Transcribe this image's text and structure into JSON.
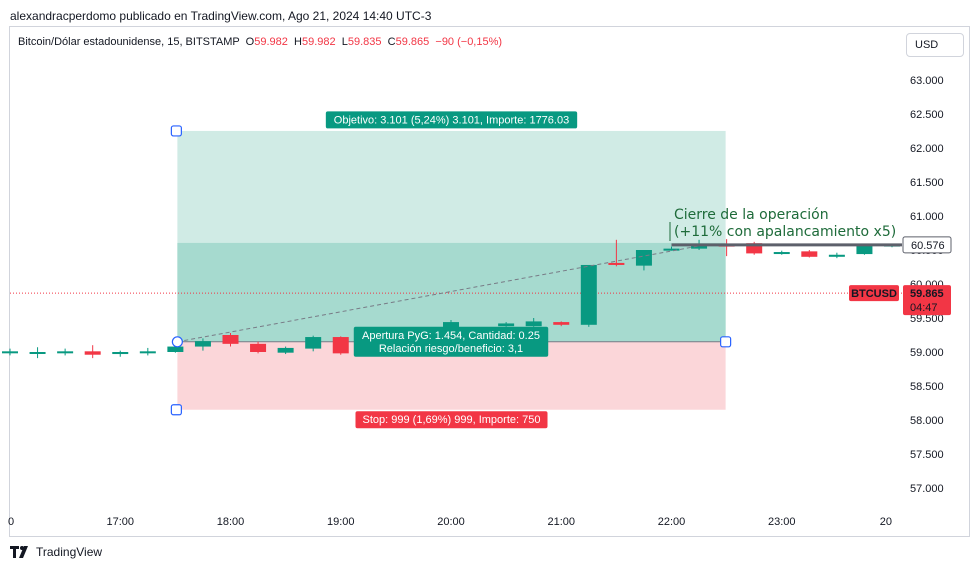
{
  "header": {
    "publisher_line": "alexandracperdomo publicado en TradingView.com, Ago 21, 2024 14:40 UTC-3"
  },
  "legend": {
    "symbol": "Bitcoin/Dólar estadounidense, 15, BITSTAMP",
    "o_label": "O",
    "o_value": "59.982",
    "h_label": "H",
    "h_value": "59.982",
    "l_label": "L",
    "l_value": "59.835",
    "c_label": "C",
    "c_value": "59.865",
    "change": "−90 (−0,15%)"
  },
  "currency_button": "USD",
  "footer": {
    "brand": "TradingView"
  },
  "colors": {
    "up": "#089981",
    "down": "#f23645",
    "target_zone": "#d0ebe5",
    "stop_zone": "#fbd6d9",
    "pnl_zone": "#a6dacf",
    "annotation_text": "#1e6b3a"
  },
  "chart_data": {
    "type": "candlestick",
    "interval_minutes": 15,
    "ylim": [
      56700,
      63300
    ],
    "y_ticks": [
      "63.000",
      "62.500",
      "62.000",
      "61.500",
      "61.000",
      "60.500",
      "60.000",
      "59.500",
      "59.000",
      "58.500",
      "58.000",
      "57.500",
      "57.000"
    ],
    "y_tick_values": [
      63000,
      62500,
      62000,
      61500,
      61000,
      60500,
      60000,
      59500,
      59000,
      58500,
      58000,
      57500,
      57000
    ],
    "x_ticks": [
      "0",
      "17:00",
      "18:00",
      "19:00",
      "20:00",
      "21:00",
      "22:00",
      "23:00",
      "20"
    ],
    "x_tick_hours": [
      16.0,
      17.0,
      18.0,
      19.0,
      20.0,
      21.0,
      22.0,
      23.0,
      24.0
    ],
    "xlim_hours": [
      16.0,
      24.0
    ],
    "candles": [
      {
        "t": 16.0,
        "o": 59000,
        "h": 59050,
        "l": 58950,
        "c": 59010
      },
      {
        "t": 16.25,
        "o": 58990,
        "h": 59070,
        "l": 58910,
        "c": 59000
      },
      {
        "t": 16.5,
        "o": 59000,
        "h": 59050,
        "l": 58950,
        "c": 59010
      },
      {
        "t": 16.75,
        "o": 59010,
        "h": 59100,
        "l": 58910,
        "c": 58960
      },
      {
        "t": 17.0,
        "o": 58970,
        "h": 59020,
        "l": 58930,
        "c": 59000
      },
      {
        "t": 17.25,
        "o": 59000,
        "h": 59060,
        "l": 58950,
        "c": 59010
      },
      {
        "t": 17.5,
        "o": 59000,
        "h": 59150,
        "l": 58990,
        "c": 59080
      },
      {
        "t": 17.75,
        "o": 59080,
        "h": 59200,
        "l": 59020,
        "c": 59160
      },
      {
        "t": 18.0,
        "o": 59250,
        "h": 59280,
        "l": 59080,
        "c": 59120
      },
      {
        "t": 18.25,
        "o": 59120,
        "h": 59150,
        "l": 58980,
        "c": 59000
      },
      {
        "t": 18.5,
        "o": 58990,
        "h": 59080,
        "l": 58970,
        "c": 59060
      },
      {
        "t": 18.75,
        "o": 59050,
        "h": 59240,
        "l": 59010,
        "c": 59220
      },
      {
        "t": 19.0,
        "o": 59220,
        "h": 59230,
        "l": 58960,
        "c": 58980
      },
      {
        "t": 19.25,
        "o": 58990,
        "h": 59150,
        "l": 58980,
        "c": 59140
      },
      {
        "t": 19.5,
        "o": 59150,
        "h": 59160,
        "l": 59110,
        "c": 59130
      },
      {
        "t": 20.0,
        "o": 59280,
        "h": 59470,
        "l": 59270,
        "c": 59440
      },
      {
        "t": 20.5,
        "o": 59380,
        "h": 59440,
        "l": 59370,
        "c": 59420
      },
      {
        "t": 20.75,
        "o": 59380,
        "h": 59500,
        "l": 59370,
        "c": 59450
      },
      {
        "t": 21.0,
        "o": 59440,
        "h": 59450,
        "l": 59380,
        "c": 59400
      },
      {
        "t": 21.25,
        "o": 59400,
        "h": 60260,
        "l": 59370,
        "c": 60280
      },
      {
        "t": 21.5,
        "o": 60310,
        "h": 60650,
        "l": 60260,
        "c": 60280
      },
      {
        "t": 21.75,
        "o": 60270,
        "h": 60500,
        "l": 60200,
        "c": 60500
      },
      {
        "t": 22.0,
        "o": 60500,
        "h": 60550,
        "l": 60490,
        "c": 60520
      },
      {
        "t": 22.25,
        "o": 60520,
        "h": 60650,
        "l": 60500,
        "c": 60580
      },
      {
        "t": 22.5,
        "o": 60580,
        "h": 60660,
        "l": 60410,
        "c": 60550
      },
      {
        "t": 22.75,
        "o": 60600,
        "h": 60620,
        "l": 60430,
        "c": 60450
      },
      {
        "t": 23.0,
        "o": 60460,
        "h": 60490,
        "l": 60430,
        "c": 60470
      },
      {
        "t": 23.25,
        "o": 60480,
        "h": 60500,
        "l": 60390,
        "c": 60400
      },
      {
        "t": 23.5,
        "o": 60400,
        "h": 60460,
        "l": 60380,
        "c": 60430
      },
      {
        "t": 23.75,
        "o": 60440,
        "h": 60580,
        "l": 60430,
        "c": 60570
      },
      {
        "t": 24.0,
        "o": 60570,
        "h": 60590,
        "l": 60540,
        "c": 60580
      }
    ],
    "position": {
      "entry_price": 59150,
      "target_price": 62251,
      "stop_price": 58151,
      "start_hour": 17.5,
      "end_hour": 22.5,
      "pnl_price": 60604,
      "target_label": "Objetivo: 3.101 (5,24%) 3.101, Importe: 1776.03",
      "stop_label": "Stop: 999 (1,69%) 999, Importe: 750",
      "pnl_label_line1": "Apertura PyG: 1.454, Cantidad: 0.25",
      "pnl_label_line2": "Relación riesgo/beneficio: 3,1"
    },
    "annotation": {
      "line1": "Cierre de la operación",
      "line2": "(+11% con apalancamiento x5)"
    },
    "markers": [
      {
        "label": "60.576",
        "price": 60576,
        "style": "outline"
      },
      {
        "label": "BTCUSD",
        "price": 59865,
        "style": "symbol"
      },
      {
        "label": "59.865",
        "price": 59865,
        "style": "price",
        "sub": "04:47"
      }
    ],
    "partial_tick_label": "59.500",
    "hline_price": 60576,
    "last_price_line": 59865
  }
}
